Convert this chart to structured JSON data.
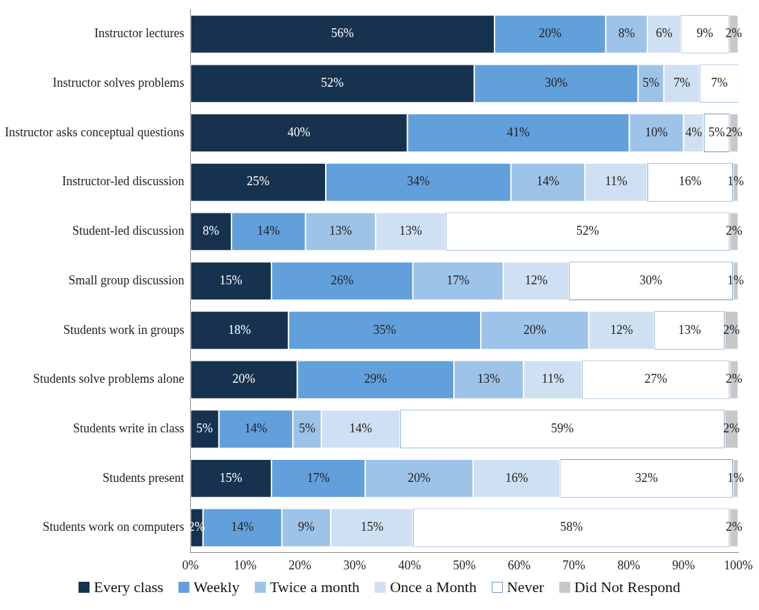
{
  "chart_data": {
    "type": "bar",
    "orientation": "horizontal",
    "stacked": true,
    "categories": [
      "Instructor lectures",
      "Instructor solves problems",
      "Instructor asks conceptual questions",
      "Instructor-led discussion",
      "Student-led discussion",
      "Small group discussion",
      "Students work in groups",
      "Students solve problems alone",
      "Students write in class",
      "Students present",
      "Students work on computers"
    ],
    "series": [
      {
        "name": "Every class",
        "color": "#17324f",
        "values": [
          55.5,
          51.8,
          39.6,
          24.7,
          7.5,
          14.8,
          17.9,
          19.5,
          5.2,
          14.8,
          2.3
        ],
        "value_labels": [
          "56%",
          "52%",
          "40%",
          "25%",
          "8%",
          "15%",
          "18%",
          "20%",
          "5%",
          "15%",
          "2%"
        ]
      },
      {
        "name": "Weekly",
        "color": "#62a0dc",
        "values": [
          20.3,
          29.9,
          40.5,
          33.8,
          13.5,
          25.8,
          35.1,
          28.6,
          13.5,
          17.1,
          14.4
        ],
        "value_labels": [
          "20%",
          "30%",
          "41%",
          "34%",
          "14%",
          "26%",
          "35%",
          "29%",
          "14%",
          "17%",
          "14%"
        ]
      },
      {
        "name": "Twice a month",
        "color": "#9dc3e8",
        "values": [
          7.6,
          4.7,
          9.9,
          13.5,
          12.8,
          16.5,
          19.7,
          12.7,
          5.2,
          19.7,
          8.9
        ],
        "value_labels": [
          "8%",
          "5%",
          "10%",
          "14%",
          "13%",
          "17%",
          "20%",
          "13%",
          "5%",
          "20%",
          "9%"
        ]
      },
      {
        "name": "Once a Month",
        "color": "#cfe0f2",
        "values": [
          6.1,
          6.6,
          3.7,
          11.4,
          12.8,
          12.0,
          12.0,
          10.7,
          14.4,
          15.9,
          15.1
        ],
        "value_labels": [
          "6%",
          "7%",
          "4%",
          "11%",
          "13%",
          "12%",
          "12%",
          "11%",
          "14%",
          "16%",
          "15%"
        ]
      },
      {
        "name": "Never",
        "color": "#ffffff",
        "values": [
          8.8,
          7.1,
          4.7,
          15.6,
          51.8,
          29.9,
          12.8,
          26.9,
          59.2,
          31.5,
          57.7
        ],
        "value_labels": [
          "9%",
          "7%",
          "5%",
          "16%",
          "52%",
          "30%",
          "13%",
          "27%",
          "59%",
          "32%",
          "58%"
        ]
      },
      {
        "name": "Did Not Respond",
        "color": "#c8c8c8",
        "values": [
          1.7,
          null,
          1.6,
          1.0,
          1.6,
          1.0,
          2.5,
          1.6,
          2.5,
          1.0,
          1.6
        ],
        "value_labels": [
          "2%",
          null,
          "2%",
          "1%",
          "2%",
          "1%",
          "2%",
          "2%",
          "2%",
          "1%",
          "2%"
        ]
      }
    ],
    "xlim": [
      0,
      100
    ],
    "xticks": [
      {
        "value": 0,
        "label": "0%"
      },
      {
        "value": 10,
        "label": "10%"
      },
      {
        "value": 20,
        "label": "20%"
      },
      {
        "value": 30,
        "label": "30%"
      },
      {
        "value": 40,
        "label": "40%"
      },
      {
        "value": 50,
        "label": "50%"
      },
      {
        "value": 60,
        "label": "60%"
      },
      {
        "value": 70,
        "label": "70%"
      },
      {
        "value": 80,
        "label": "80%"
      },
      {
        "value": 90,
        "label": "90%"
      },
      {
        "value": 100,
        "label": "100%"
      }
    ],
    "grid": false,
    "legend": "bottom"
  }
}
